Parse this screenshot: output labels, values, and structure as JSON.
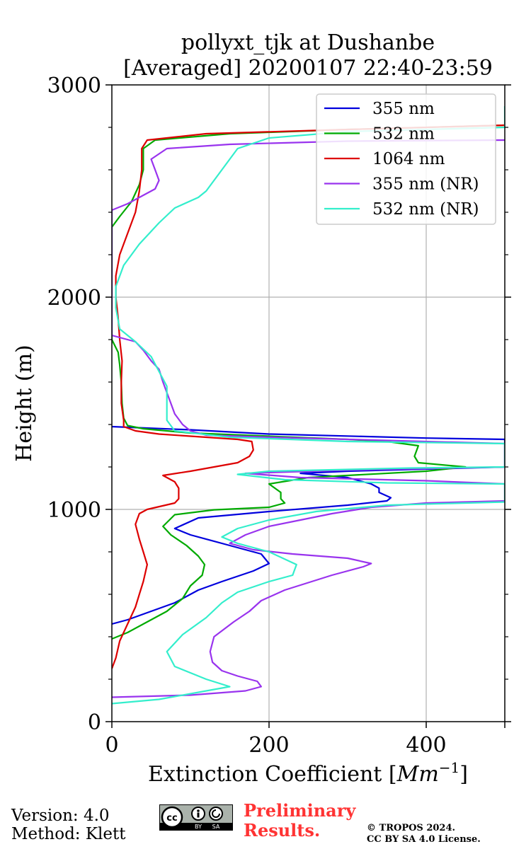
{
  "chart_data": {
    "type": "line",
    "title": [
      "pollyxt_tjk at Dushanbe",
      "[Averaged] 20200107 22:40-23:59"
    ],
    "xlabel": "Extinction Coefficient [Mm⁻¹]",
    "ylabel": "Height (m)",
    "xlim": [
      0,
      500
    ],
    "ylim": [
      0,
      3000
    ],
    "xticks": [
      0,
      200,
      400
    ],
    "yticks": [
      0,
      1000,
      2000,
      3000
    ],
    "grid": true,
    "legend_position": "top-right",
    "series": [
      {
        "name": "355 nm",
        "color": "#0000dd",
        "points": [
          [
            0,
            460
          ],
          [
            20,
            480
          ],
          [
            50,
            520
          ],
          [
            80,
            560
          ],
          [
            110,
            620
          ],
          [
            140,
            660
          ],
          [
            180,
            710
          ],
          [
            200,
            745
          ],
          [
            190,
            790
          ],
          [
            150,
            830
          ],
          [
            100,
            880
          ],
          [
            80,
            910
          ],
          [
            110,
            960
          ],
          [
            200,
            990
          ],
          [
            300,
            1020
          ],
          [
            350,
            1040
          ],
          [
            355,
            1055
          ],
          [
            340,
            1080
          ],
          [
            340,
            1100
          ],
          [
            330,
            1120
          ],
          [
            300,
            1150
          ],
          [
            240,
            1170
          ],
          [
            300,
            1180
          ],
          [
            500,
            1200
          ],
          [
            500,
            1270
          ],
          [
            500,
            1330
          ],
          [
            400,
            1336
          ],
          [
            200,
            1355
          ],
          [
            100,
            1375
          ],
          [
            0,
            1390
          ]
        ]
      },
      {
        "name": "532 nm",
        "color": "#00aa00",
        "points": [
          [
            0,
            390
          ],
          [
            20,
            420
          ],
          [
            50,
            480
          ],
          [
            70,
            520
          ],
          [
            90,
            580
          ],
          [
            100,
            640
          ],
          [
            115,
            690
          ],
          [
            118,
            740
          ],
          [
            110,
            780
          ],
          [
            95,
            830
          ],
          [
            75,
            880
          ],
          [
            65,
            920
          ],
          [
            80,
            975
          ],
          [
            130,
            998
          ],
          [
            200,
            1010
          ],
          [
            220,
            1030
          ],
          [
            215,
            1050
          ],
          [
            215,
            1080
          ],
          [
            200,
            1120
          ],
          [
            250,
            1150
          ],
          [
            400,
            1180
          ],
          [
            450,
            1200
          ],
          [
            390,
            1220
          ],
          [
            385,
            1250
          ],
          [
            390,
            1300
          ],
          [
            350,
            1320
          ],
          [
            300,
            1330
          ],
          [
            200,
            1345
          ],
          [
            100,
            1360
          ],
          [
            40,
            1380
          ],
          [
            20,
            1395
          ],
          [
            15,
            1430
          ],
          [
            13,
            1500
          ],
          [
            12,
            1600
          ],
          [
            10,
            1680
          ],
          [
            8,
            1740
          ],
          [
            0,
            1800
          ],
          [
            0,
            2330
          ],
          [
            10,
            2380
          ],
          [
            25,
            2450
          ],
          [
            35,
            2530
          ],
          [
            40,
            2600
          ],
          [
            40,
            2700
          ],
          [
            55,
            2740
          ],
          [
            150,
            2770
          ],
          [
            300,
            2790
          ],
          [
            500,
            2810
          ]
        ]
      },
      {
        "name": "1064 nm",
        "color": "#dd0000",
        "points": [
          [
            0,
            250
          ],
          [
            5,
            300
          ],
          [
            10,
            380
          ],
          [
            20,
            460
          ],
          [
            30,
            540
          ],
          [
            35,
            600
          ],
          [
            40,
            660
          ],
          [
            45,
            740
          ],
          [
            40,
            800
          ],
          [
            35,
            860
          ],
          [
            30,
            930
          ],
          [
            35,
            980
          ],
          [
            45,
            1000
          ],
          [
            80,
            1030
          ],
          [
            85,
            1050
          ],
          [
            85,
            1100
          ],
          [
            80,
            1130
          ],
          [
            65,
            1160
          ],
          [
            100,
            1180
          ],
          [
            160,
            1220
          ],
          [
            175,
            1250
          ],
          [
            180,
            1280
          ],
          [
            178,
            1320
          ],
          [
            160,
            1330
          ],
          [
            120,
            1340
          ],
          [
            60,
            1355
          ],
          [
            30,
            1370
          ],
          [
            15,
            1390
          ],
          [
            15,
            1420
          ],
          [
            12,
            1500
          ],
          [
            12,
            1600
          ],
          [
            13,
            1700
          ],
          [
            10,
            1800
          ],
          [
            8,
            1900
          ],
          [
            5,
            2000
          ],
          [
            5,
            2100
          ],
          [
            10,
            2200
          ],
          [
            20,
            2300
          ],
          [
            30,
            2400
          ],
          [
            35,
            2500
          ],
          [
            38,
            2600
          ],
          [
            38,
            2700
          ],
          [
            45,
            2740
          ],
          [
            120,
            2770
          ],
          [
            300,
            2790
          ],
          [
            500,
            2810
          ]
        ]
      },
      {
        "name": "355 nm (NR)",
        "color": "#9933ee",
        "points": [
          [
            0,
            115
          ],
          [
            100,
            125
          ],
          [
            170,
            145
          ],
          [
            190,
            165
          ],
          [
            185,
            190
          ],
          [
            160,
            215
          ],
          [
            140,
            240
          ],
          [
            128,
            280
          ],
          [
            125,
            330
          ],
          [
            130,
            400
          ],
          [
            155,
            470
          ],
          [
            175,
            520
          ],
          [
            190,
            570
          ],
          [
            220,
            620
          ],
          [
            280,
            690
          ],
          [
            320,
            730
          ],
          [
            330,
            745
          ],
          [
            300,
            770
          ],
          [
            230,
            790
          ],
          [
            180,
            810
          ],
          [
            150,
            840
          ],
          [
            170,
            880
          ],
          [
            200,
            920
          ],
          [
            240,
            950
          ],
          [
            280,
            980
          ],
          [
            330,
            1010
          ],
          [
            400,
            1030
          ],
          [
            500,
            1040
          ],
          [
            500,
            1120
          ],
          [
            400,
            1135
          ],
          [
            240,
            1150
          ],
          [
            170,
            1170
          ],
          [
            300,
            1185
          ],
          [
            500,
            1200
          ],
          [
            500,
            1310
          ],
          [
            300,
            1330
          ],
          [
            200,
            1340
          ],
          [
            120,
            1350
          ],
          [
            100,
            1370
          ],
          [
            90,
            1400
          ],
          [
            80,
            1450
          ],
          [
            75,
            1500
          ],
          [
            70,
            1550
          ],
          [
            65,
            1600
          ],
          [
            60,
            1660
          ],
          [
            50,
            1700
          ],
          [
            40,
            1750
          ],
          [
            30,
            1790
          ],
          [
            0,
            1820
          ],
          [
            0,
            2410
          ],
          [
            20,
            2440
          ],
          [
            40,
            2480
          ],
          [
            55,
            2510
          ],
          [
            60,
            2550
          ],
          [
            55,
            2600
          ],
          [
            50,
            2650
          ],
          [
            70,
            2700
          ],
          [
            150,
            2720
          ],
          [
            300,
            2735
          ],
          [
            500,
            2740
          ]
        ]
      },
      {
        "name": "532 nm (NR)",
        "color": "#33eecc",
        "points": [
          [
            0,
            85
          ],
          [
            60,
            105
          ],
          [
            150,
            165
          ],
          [
            120,
            200
          ],
          [
            80,
            260
          ],
          [
            70,
            330
          ],
          [
            90,
            410
          ],
          [
            120,
            490
          ],
          [
            140,
            560
          ],
          [
            160,
            610
          ],
          [
            200,
            660
          ],
          [
            230,
            690
          ],
          [
            235,
            740
          ],
          [
            200,
            800
          ],
          [
            160,
            840
          ],
          [
            140,
            870
          ],
          [
            160,
            910
          ],
          [
            200,
            950
          ],
          [
            260,
            990
          ],
          [
            350,
            1020
          ],
          [
            500,
            1035
          ],
          [
            500,
            1120
          ],
          [
            350,
            1125
          ],
          [
            220,
            1140
          ],
          [
            160,
            1165
          ],
          [
            200,
            1180
          ],
          [
            380,
            1195
          ],
          [
            500,
            1200
          ],
          [
            500,
            1310
          ],
          [
            300,
            1320
          ],
          [
            150,
            1340
          ],
          [
            80,
            1370
          ],
          [
            70,
            1420
          ],
          [
            70,
            1500
          ],
          [
            70,
            1580
          ],
          [
            60,
            1650
          ],
          [
            50,
            1720
          ],
          [
            30,
            1790
          ],
          [
            10,
            1850
          ],
          [
            5,
            1950
          ],
          [
            5,
            2050
          ],
          [
            15,
            2150
          ],
          [
            35,
            2250
          ],
          [
            60,
            2350
          ],
          [
            80,
            2420
          ],
          [
            110,
            2470
          ],
          [
            120,
            2500
          ],
          [
            130,
            2550
          ],
          [
            140,
            2600
          ],
          [
            150,
            2650
          ],
          [
            160,
            2700
          ],
          [
            200,
            2750
          ],
          [
            300,
            2780
          ],
          [
            450,
            2795
          ],
          [
            500,
            2800
          ],
          [
            500,
            2900
          ]
        ]
      }
    ],
    "legend_entries": [
      "355 nm",
      "532 nm",
      "1064 nm",
      "355 nm (NR)",
      "532 nm (NR)"
    ]
  },
  "footer": {
    "version": "Version: 4.0",
    "method": "Method: Klett",
    "preliminary_line1": "Preliminary",
    "preliminary_line2": "Results.",
    "copyright_line1": "© TROPOS 2024.",
    "copyright_line2": "CC BY SA 4.0 License.",
    "cc_label": "cc",
    "cc_by": "BY",
    "cc_sa": "SA"
  }
}
